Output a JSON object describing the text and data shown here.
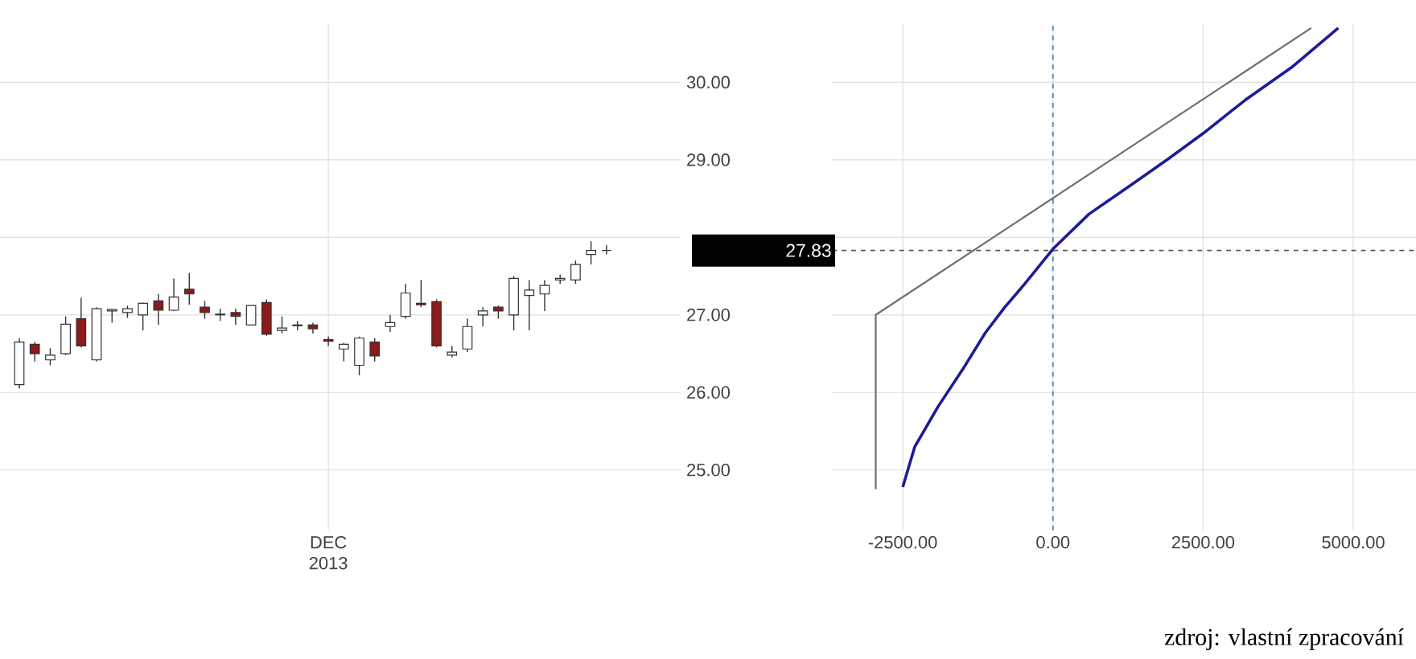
{
  "chart_data": [
    {
      "type": "candlestick",
      "categories": [
        null,
        null,
        null,
        null,
        null,
        null,
        null,
        null,
        null,
        null,
        null,
        null,
        null,
        null,
        null,
        null,
        null,
        null,
        null,
        null,
        "DEC 2013",
        null,
        null,
        null,
        null,
        null,
        null,
        null,
        null,
        null,
        null,
        null,
        null,
        null,
        null,
        null,
        null,
        null,
        null
      ],
      "ohlc": [
        [
          26.1,
          26.7,
          26.05,
          26.65
        ],
        [
          26.62,
          26.65,
          26.4,
          26.5
        ],
        [
          26.42,
          26.57,
          26.35,
          26.48
        ],
        [
          26.5,
          26.98,
          26.48,
          26.88
        ],
        [
          26.95,
          27.22,
          26.58,
          26.6
        ],
        [
          26.42,
          27.1,
          26.4,
          27.08
        ],
        [
          27.05,
          27.07,
          26.9,
          27.07
        ],
        [
          27.03,
          27.12,
          26.96,
          27.08
        ],
        [
          27.0,
          27.16,
          26.8,
          27.15
        ],
        [
          27.18,
          27.27,
          26.87,
          27.06
        ],
        [
          27.06,
          27.47,
          27.05,
          27.23
        ],
        [
          27.33,
          27.54,
          27.13,
          27.27
        ],
        [
          27.1,
          27.18,
          26.95,
          27.03
        ],
        [
          27.0,
          27.08,
          26.92,
          27.01
        ],
        [
          27.03,
          27.08,
          26.87,
          26.98
        ],
        [
          26.87,
          27.12,
          26.87,
          27.12
        ],
        [
          27.16,
          27.2,
          26.73,
          26.75
        ],
        [
          26.8,
          26.98,
          26.76,
          26.83
        ],
        [
          26.86,
          26.92,
          26.8,
          26.87
        ],
        [
          26.87,
          26.9,
          26.76,
          26.82
        ],
        [
          26.68,
          26.72,
          26.6,
          26.66
        ],
        [
          26.56,
          26.64,
          26.4,
          26.62
        ],
        [
          26.35,
          26.72,
          26.22,
          26.7
        ],
        [
          26.65,
          26.7,
          26.4,
          26.47
        ],
        [
          26.85,
          27.0,
          26.78,
          26.9
        ],
        [
          26.98,
          27.4,
          26.95,
          27.28
        ],
        [
          27.15,
          27.45,
          27.1,
          27.13
        ],
        [
          27.17,
          27.2,
          26.58,
          26.6
        ],
        [
          26.48,
          26.6,
          26.45,
          26.52
        ],
        [
          26.56,
          26.95,
          26.52,
          26.85
        ],
        [
          27.0,
          27.1,
          26.85,
          27.05
        ],
        [
          27.1,
          27.12,
          26.95,
          27.05
        ],
        [
          27.0,
          27.5,
          26.8,
          27.47
        ],
        [
          27.25,
          27.45,
          26.8,
          27.32
        ],
        [
          27.27,
          27.45,
          27.05,
          27.38
        ],
        [
          27.45,
          27.52,
          27.4,
          27.47
        ],
        [
          27.45,
          27.7,
          27.4,
          27.65
        ],
        [
          27.78,
          27.95,
          27.65,
          27.83
        ],
        [
          27.83,
          27.9,
          27.78,
          27.83
        ]
      ],
      "ylim": [
        24.22,
        30.75
      ],
      "yticks": [
        {
          "value": 25,
          "label": "25.00"
        },
        {
          "value": 26,
          "label": "26.00"
        },
        {
          "value": 27,
          "label": "27.00"
        },
        {
          "value": 28,
          "label": null
        },
        {
          "value": 29,
          "label": "29.00"
        },
        {
          "value": 30,
          "label": "30.00"
        }
      ],
      "grid": true
    },
    {
      "type": "line",
      "series": [
        {
          "color": "#6e6e6e",
          "x": [
            -2950,
            -2950,
            4300
          ],
          "values": [
            24.75,
            27.0,
            30.7
          ]
        },
        {
          "color": "#1c1c99",
          "x": [
            -2500,
            -2300,
            -1910,
            -1500,
            -1125,
            -800,
            -480,
            0,
            600,
            1290,
            1900,
            2500,
            3200,
            3970,
            4750
          ],
          "values": [
            24.78,
            25.3,
            25.82,
            26.3,
            26.77,
            27.1,
            27.39,
            27.85,
            28.3,
            28.67,
            29.0,
            29.34,
            29.77,
            30.19,
            30.7
          ]
        }
      ],
      "xlim": [
        -3680,
        6045
      ],
      "xticks": [
        {
          "value": -2500,
          "label": "-2500.00"
        },
        {
          "value": 0,
          "label": "0.00"
        },
        {
          "value": 2500,
          "label": "2500.00"
        },
        {
          "value": 5000,
          "label": "5000.00"
        }
      ],
      "ylim": [
        24.22,
        30.75
      ],
      "yticks": [
        25,
        26,
        27,
        28,
        29,
        30
      ],
      "tick_labels": "x",
      "grid": true,
      "ref_lines": [
        {
          "axis": "x",
          "value": 0,
          "color": "#4a7fc1",
          "line_style": "dashed"
        },
        {
          "axis": "y",
          "value": 27.83,
          "label": "27.83",
          "color": "#555555",
          "line_style": "dashed"
        }
      ],
      "annotations": [
        "zdroj: vlastní zpracování"
      ]
    }
  ]
}
